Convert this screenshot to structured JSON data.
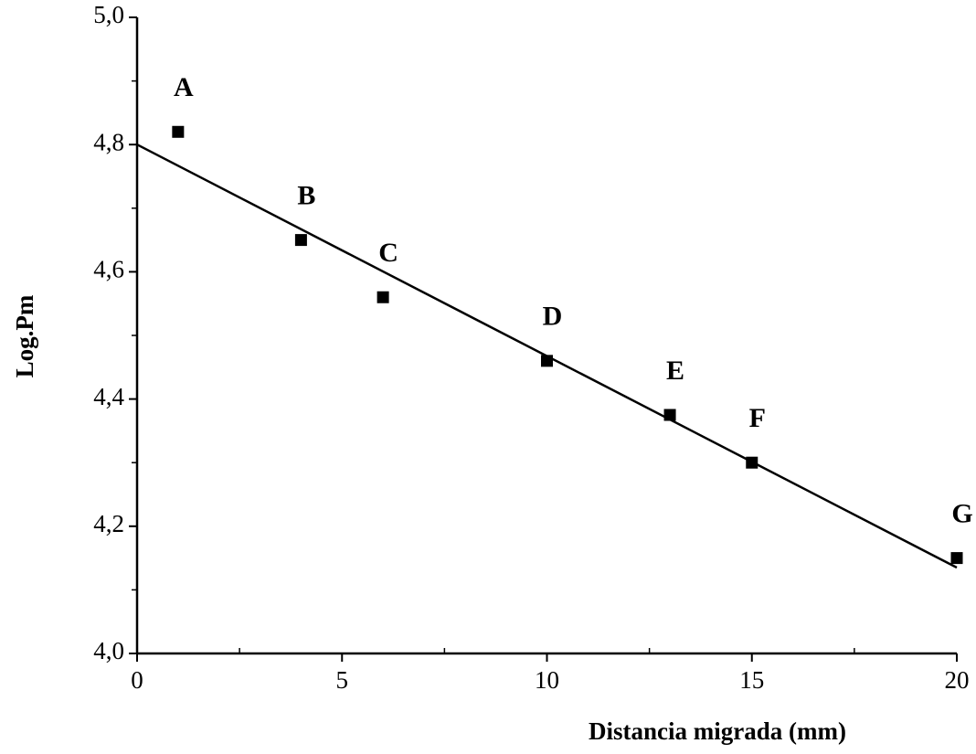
{
  "chart_data": {
    "type": "scatter",
    "xlabel": "Distancia migrada (mm)",
    "ylabel": "Log.Pm",
    "x": [
      1,
      4,
      6,
      10,
      13,
      15,
      20
    ],
    "values": [
      4.82,
      4.65,
      4.56,
      4.46,
      4.375,
      4.3,
      4.15
    ],
    "point_labels": [
      "A",
      "B",
      "C",
      "D",
      "E",
      "F",
      "G"
    ],
    "color": "#000000",
    "trendline": {
      "x": [
        0,
        20
      ],
      "values": [
        4.8,
        4.135
      ]
    },
    "xlim": [
      0,
      20
    ],
    "xticks": [
      0,
      5,
      10,
      15,
      20
    ],
    "xminorticks": [
      2.5,
      7.5,
      12.5,
      17.5
    ],
    "ylim": [
      4.0,
      5.0
    ],
    "yticks": [
      {
        "value": 4.0,
        "label": "4,0"
      },
      {
        "value": 4.2,
        "label": "4,2"
      },
      {
        "value": 4.4,
        "label": "4,4"
      },
      {
        "value": 4.6,
        "label": "4,6"
      },
      {
        "value": 4.8,
        "label": "4,8"
      },
      {
        "value": 5.0,
        "label": "5,0"
      }
    ],
    "yminorticks": [
      4.1,
      4.3,
      4.5,
      4.7,
      4.9
    ],
    "grid": false
  }
}
